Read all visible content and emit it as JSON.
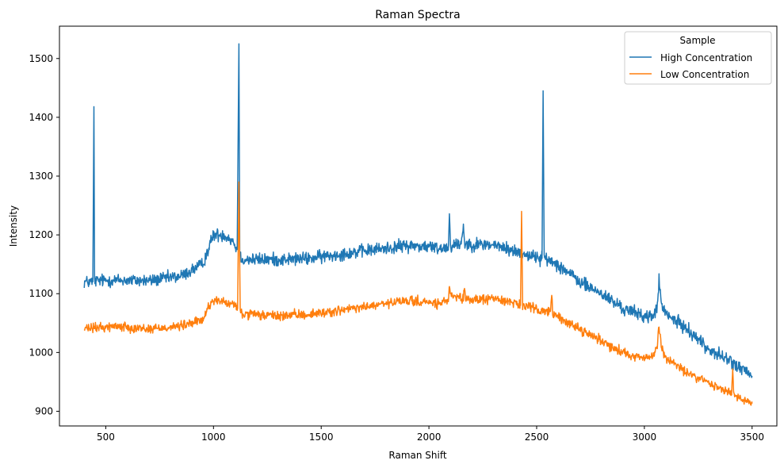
{
  "chart_data": {
    "type": "line",
    "title": "Raman Spectra",
    "xlabel": "Raman Shift",
    "ylabel": "Intensity",
    "xlim": [
      285,
      3615
    ],
    "ylim": [
      875,
      1555
    ],
    "xticks": [
      500,
      1000,
      1500,
      2000,
      2500,
      3000,
      3500
    ],
    "yticks": [
      900,
      1000,
      1100,
      1200,
      1300,
      1400,
      1500
    ],
    "grid": false,
    "legend": {
      "title": "Sample",
      "placement": "top-right"
    },
    "series": [
      {
        "name": "High Concentration",
        "color": "#1f77b4",
        "noise": 11,
        "x": [
          400,
          440,
          445,
          448,
          455,
          550,
          700,
          850,
          950,
          980,
          1000,
          1050,
          1090,
          1110,
          1118,
          1122,
          1130,
          1150,
          1300,
          1450,
          1600,
          1750,
          1900,
          2000,
          2050,
          2090,
          2095,
          2100,
          2150,
          2160,
          2165,
          2170,
          2200,
          2300,
          2400,
          2500,
          2525,
          2530,
          2535,
          2600,
          2700,
          2800,
          2900,
          3000,
          3040,
          3060,
          3068,
          3080,
          3100,
          3200,
          3300,
          3400,
          3500
        ],
        "y": [
          1120,
          1120,
          1418,
          1120,
          1122,
          1123,
          1122,
          1130,
          1150,
          1180,
          1200,
          1200,
          1190,
          1175,
          1525,
          1165,
          1160,
          1158,
          1158,
          1160,
          1168,
          1175,
          1182,
          1180,
          1177,
          1180,
          1235,
          1182,
          1185,
          1220,
          1185,
          1185,
          1184,
          1183,
          1172,
          1162,
          1160,
          1445,
          1160,
          1150,
          1120,
          1100,
          1075,
          1062,
          1060,
          1080,
          1122,
          1080,
          1065,
          1040,
          1005,
          985,
          960
        ]
      },
      {
        "name": "Low Concentration",
        "color": "#ff7f0e",
        "noise": 8,
        "x": [
          400,
          550,
          700,
          850,
          950,
          980,
          1000,
          1050,
          1100,
          1112,
          1118,
          1124,
          1135,
          1300,
          1450,
          1600,
          1750,
          1900,
          2000,
          2050,
          2090,
          2095,
          2100,
          2160,
          2165,
          2170,
          2250,
          2300,
          2400,
          2425,
          2430,
          2435,
          2500,
          2565,
          2570,
          2575,
          2700,
          2800,
          2900,
          3000,
          3040,
          3060,
          3068,
          3080,
          3100,
          3200,
          3300,
          3405,
          3410,
          3415,
          3500
        ],
        "y": [
          1040,
          1045,
          1040,
          1045,
          1055,
          1080,
          1090,
          1085,
          1080,
          1075,
          1290,
          1070,
          1065,
          1062,
          1065,
          1072,
          1080,
          1088,
          1085,
          1082,
          1090,
          1115,
          1095,
          1090,
          1110,
          1090,
          1090,
          1092,
          1085,
          1080,
          1240,
          1080,
          1073,
          1070,
          1097,
          1065,
          1040,
          1020,
          1000,
          990,
          993,
          1010,
          1045,
          1010,
          990,
          965,
          948,
          930,
          968,
          928,
          913
        ]
      }
    ]
  }
}
